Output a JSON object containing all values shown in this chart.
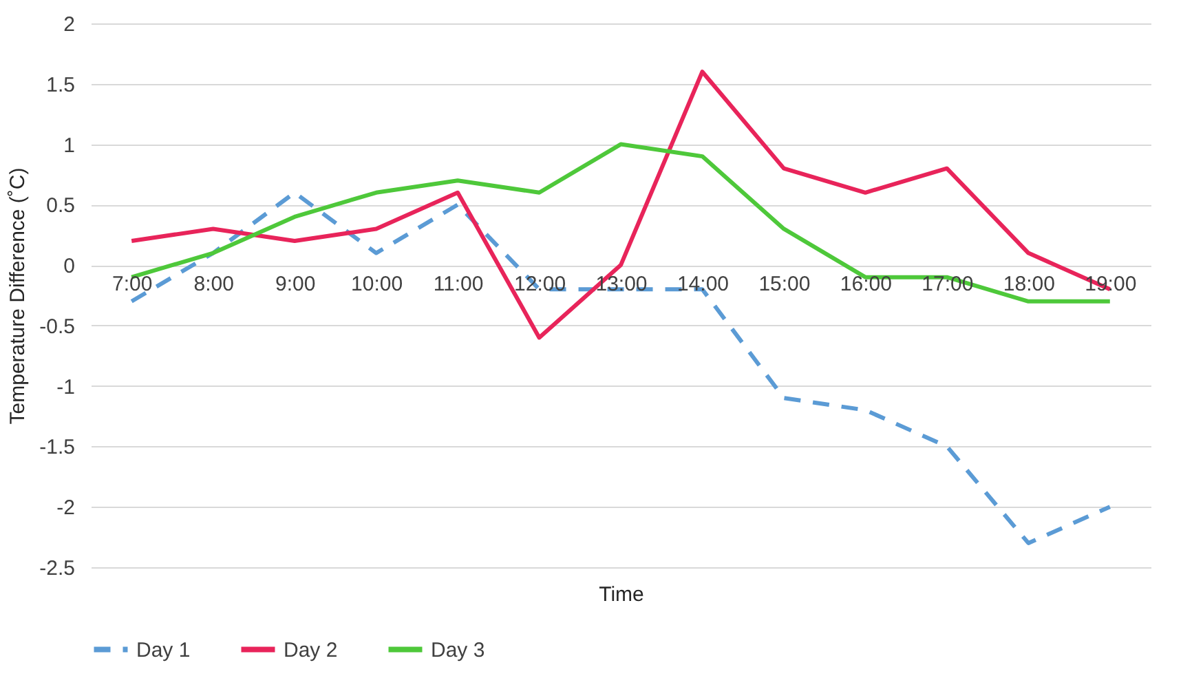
{
  "chart_data": {
    "type": "line",
    "xlabel": "Time",
    "ylabel": "Temperature Difference (˚C)",
    "categories": [
      "7:00",
      "8:00",
      "9:00",
      "10:00",
      "11:00",
      "12:00",
      "13:00",
      "14:00",
      "15:00",
      "16:00",
      "17:00",
      "18:00",
      "19:00"
    ],
    "series": [
      {
        "name": "Day 1",
        "color": "#5b9bd5",
        "line_style": "dashed",
        "values": [
          -0.3,
          0.1,
          0.6,
          0.1,
          0.5,
          -0.2,
          -0.2,
          -0.2,
          -1.1,
          -1.2,
          -1.5,
          -2.3,
          -2.0
        ]
      },
      {
        "name": "Day 2",
        "color": "#e8245a",
        "line_style": "solid",
        "values": [
          0.2,
          0.3,
          0.2,
          0.3,
          0.6,
          -0.6,
          0,
          1.6,
          0.8,
          0.6,
          0.8,
          0.1,
          -0.2
        ]
      },
      {
        "name": "Day 3",
        "color": "#4ec83a",
        "line_style": "solid",
        "values": [
          -0.1,
          0.1,
          0.4,
          0.6,
          0.7,
          0.6,
          1.0,
          0.9,
          0.3,
          -0.1,
          -0.1,
          -0.3,
          -0.3
        ]
      }
    ],
    "ylim": [
      -2.5,
      2
    ],
    "yticks": [
      -2.5,
      -2,
      -1.5,
      -1,
      -0.5,
      0,
      0.5,
      1,
      1.5,
      2
    ],
    "grid": "y",
    "legend": "bottom",
    "marker": "none"
  }
}
